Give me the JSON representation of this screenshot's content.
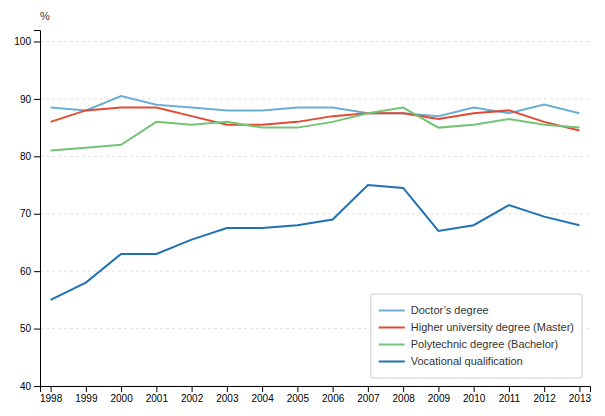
{
  "chart_data": {
    "type": "line",
    "ylabel": "%",
    "x": [
      1998,
      1999,
      2000,
      2001,
      2002,
      2003,
      2004,
      2005,
      2006,
      2007,
      2008,
      2009,
      2010,
      2011,
      2012,
      2013
    ],
    "series": [
      {
        "name": "Doctor’s degree",
        "color": "#6baed6",
        "values": [
          88.5,
          88,
          90.5,
          89,
          88.5,
          88,
          88,
          88.5,
          88.5,
          87.5,
          87.5,
          87,
          88.5,
          87.5,
          89,
          87.5
        ]
      },
      {
        "name": "Higher university degree (Master)",
        "color": "#e34a33",
        "values": [
          86,
          88,
          88.5,
          88.5,
          87,
          85.5,
          85.5,
          86,
          87,
          87.5,
          87.5,
          86.5,
          87.5,
          88,
          86,
          84.5
        ]
      },
      {
        "name": "Polytechnic degree (Bachelor)",
        "color": "#74c476",
        "values": [
          81,
          81.5,
          82,
          86,
          85.5,
          86,
          85,
          85,
          86,
          87.5,
          88.5,
          85,
          85.5,
          86.5,
          85.5,
          85
        ]
      },
      {
        "name": "Vocational qualification",
        "color": "#2171b5",
        "values": [
          55,
          58,
          63,
          63,
          65.5,
          67.5,
          67.5,
          68,
          69,
          75,
          74.5,
          67,
          68,
          71.5,
          69.5,
          68
        ]
      }
    ],
    "xlim": [
      1997.7,
      2013.3
    ],
    "xticks": [
      1998,
      1999,
      2000,
      2001,
      2002,
      2003,
      2004,
      2005,
      2006,
      2007,
      2008,
      2009,
      2010,
      2011,
      2012,
      2013
    ],
    "ylim": [
      40,
      102
    ],
    "yticks": [
      40,
      50,
      60,
      70,
      80,
      90,
      100
    ],
    "grid": true,
    "legend": "lower right"
  }
}
